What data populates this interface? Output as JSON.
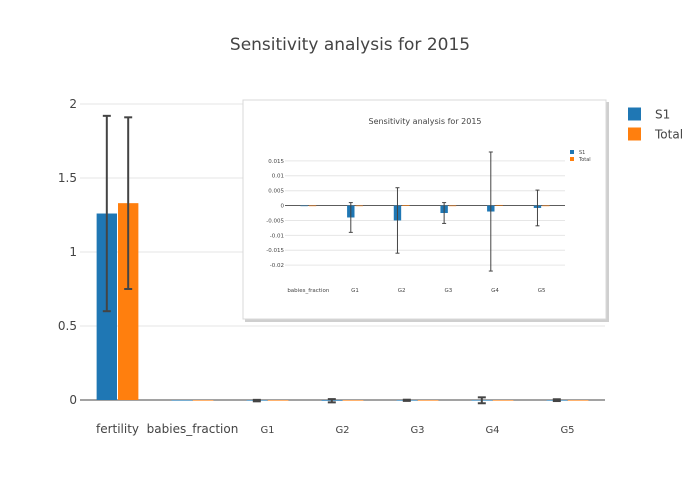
{
  "colors": {
    "s1": "#1f77b4",
    "total": "#ff7f0e",
    "grid": "#e6e6e6",
    "axis": "#444444",
    "error": "#444444"
  },
  "chart_data": [
    {
      "type": "bar",
      "title": "Sensitivity analysis for 2015",
      "categories": [
        "fertility",
        "babies_fraction",
        "G1",
        "G2",
        "G3",
        "G4",
        "G5"
      ],
      "series": [
        {
          "name": "S1",
          "values": [
            1.26,
            0.0,
            -0.004,
            -0.005,
            -0.002,
            -0.002,
            -0.001
          ],
          "errors": [
            0.66,
            0.0,
            0.005,
            0.011,
            0.004,
            0.02,
            0.006
          ]
        },
        {
          "name": "Total",
          "values": [
            1.33,
            0.0,
            0.0,
            0.0,
            0.0,
            0.0,
            0.0
          ],
          "errors": [
            0.58,
            0.0,
            0.0,
            0.0,
            0.0,
            0.0,
            0.0
          ]
        }
      ],
      "yticks": [
        "0",
        "0.5",
        "1",
        "1.5",
        "2"
      ],
      "ylim": [
        0,
        2
      ],
      "grid": true,
      "legend": "top-right"
    },
    {
      "type": "bar",
      "title": "Sensitivity analysis for 2015",
      "categories": [
        "babies_fraction",
        "G1",
        "G2",
        "G3",
        "G4",
        "G5"
      ],
      "series": [
        {
          "name": "S1",
          "values": [
            0.0,
            -0.004,
            -0.005,
            -0.0025,
            -0.002,
            -0.0008
          ],
          "errors": [
            0.0,
            0.005,
            0.011,
            0.0035,
            0.02,
            0.006
          ]
        },
        {
          "name": "Total",
          "values": [
            0.0,
            0.0,
            0.0001,
            0.0,
            0.0002,
            0.0
          ],
          "errors": [
            0.0,
            0.0,
            0.0,
            0.0,
            0.0,
            0.0
          ]
        }
      ],
      "yticks": [
        "0.015",
        "0.01",
        "0.005",
        "0",
        "-0.005",
        "-0.01",
        "-0.015",
        "-0.02"
      ],
      "ylim": [
        -0.024,
        0.018
      ],
      "grid": true,
      "legend": "top-right"
    }
  ]
}
